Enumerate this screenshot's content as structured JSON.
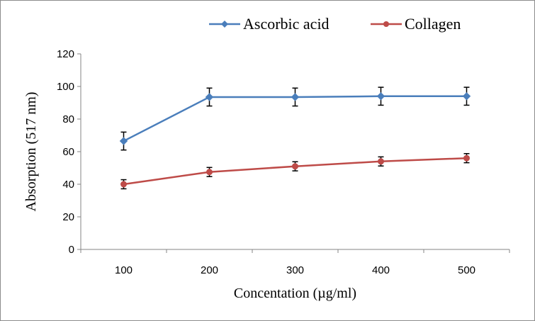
{
  "chart_data": {
    "type": "line",
    "title": "",
    "xlabel": "Concentation (µg/ml)",
    "ylabel": "Absorption (517 nm)",
    "categories": [
      "100",
      "200",
      "300",
      "400",
      "500"
    ],
    "ylim": [
      0,
      120
    ],
    "yticks": [
      0,
      20,
      40,
      60,
      80,
      100,
      120
    ],
    "grid": false,
    "legend_position": "top",
    "series": [
      {
        "name": "Ascorbic acid",
        "color": "#4a7ebb",
        "marker": "diamond",
        "values": [
          66.5,
          93.5,
          93.5,
          94,
          94
        ],
        "errors": [
          5.5,
          5.5,
          5.5,
          5.5,
          5.5
        ]
      },
      {
        "name": "Collagen",
        "color": "#be4b48",
        "marker": "circle",
        "values": [
          40,
          47.5,
          51,
          54,
          56
        ],
        "errors": [
          2.8,
          2.8,
          2.8,
          2.8,
          2.8
        ]
      }
    ]
  }
}
